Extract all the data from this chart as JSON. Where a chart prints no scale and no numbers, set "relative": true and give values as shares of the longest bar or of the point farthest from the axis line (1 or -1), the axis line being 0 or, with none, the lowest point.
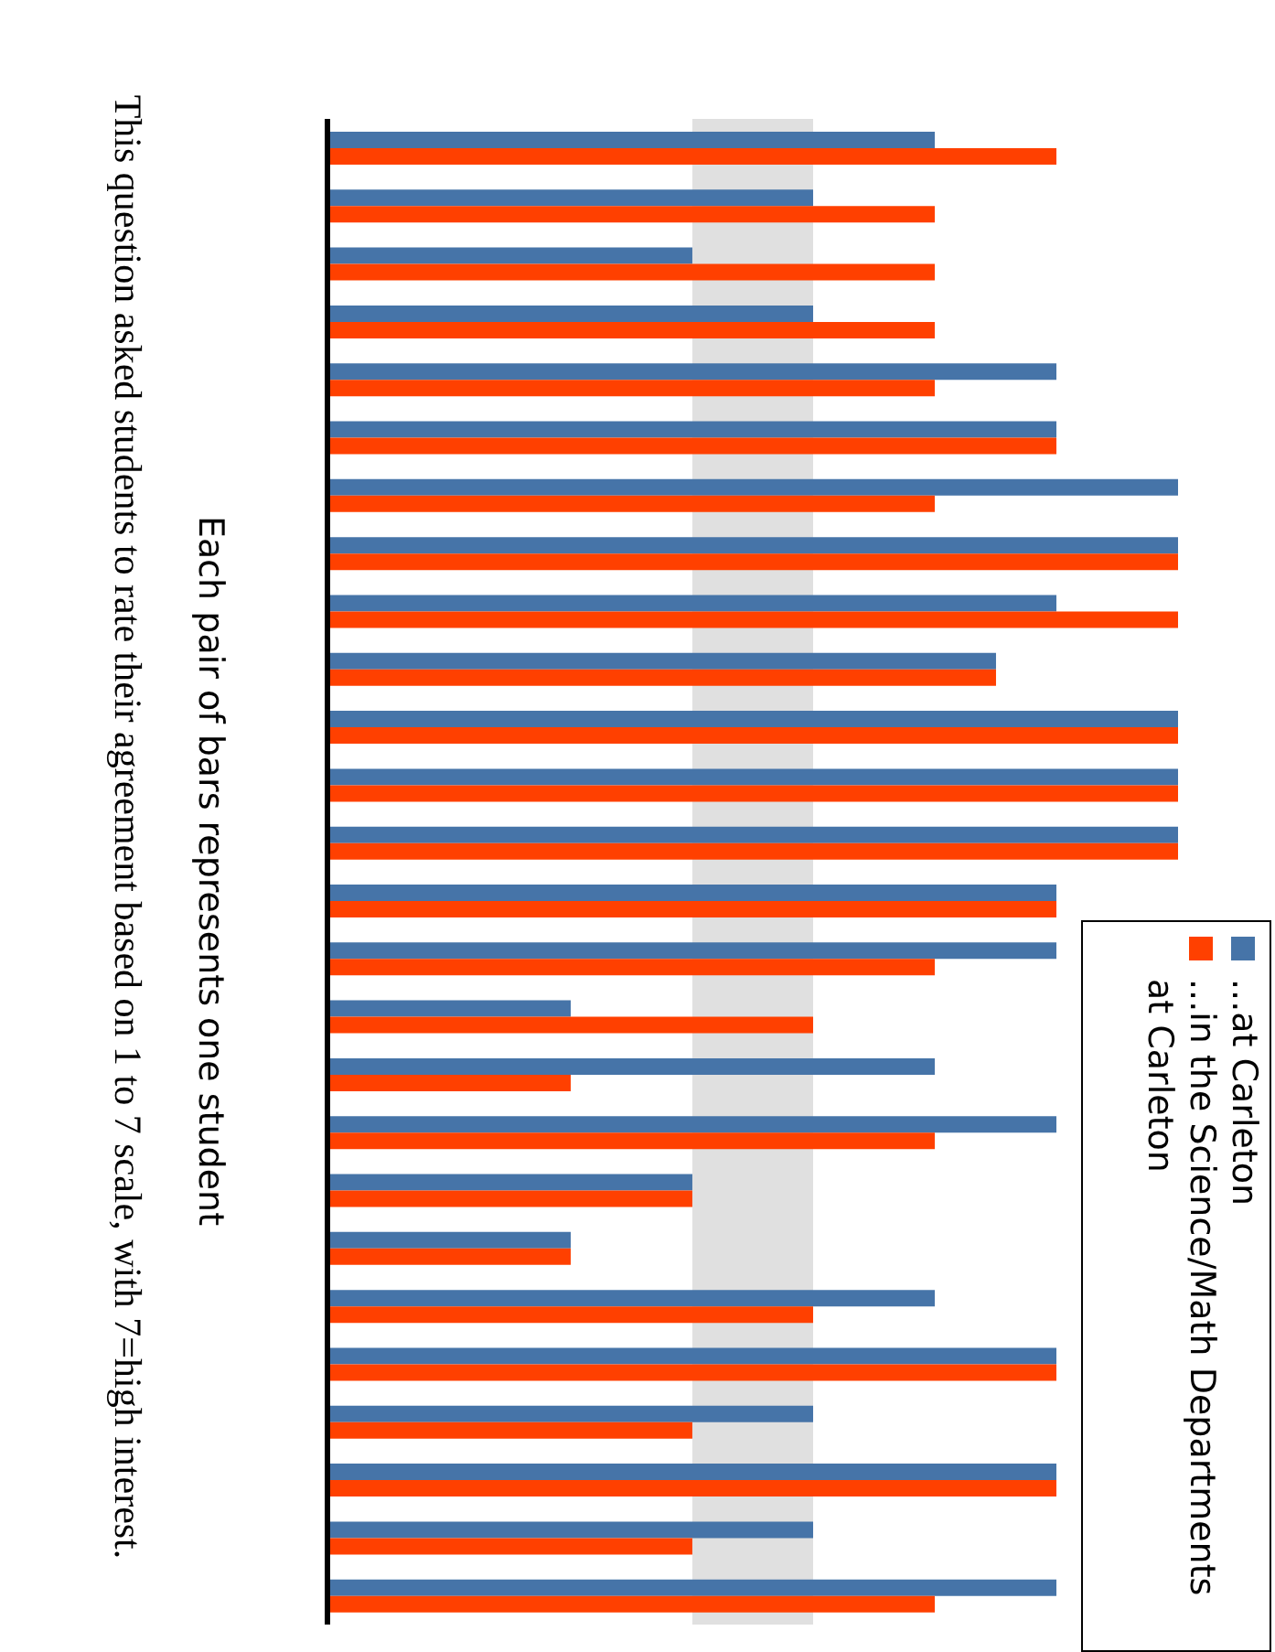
{
  "chart_data": {
    "type": "bar",
    "relative": true,
    "orientation": "horizontal",
    "ylabel": "Each pair of bars represents one student",
    "annotations": [
      "This question asked students to rate their agreement based on 1 to 7 scale, with 7=high interest."
    ],
    "categories": [
      null,
      null,
      null,
      null,
      null,
      null,
      null,
      null,
      null,
      null,
      null,
      null,
      null,
      null,
      null,
      null,
      null,
      null,
      null,
      null,
      null,
      null,
      null,
      null,
      null,
      null
    ],
    "series": [
      {
        "name": "...at Carleton",
        "color": "#4674a8",
        "values": [
          0.714,
          0.571,
          0.429,
          0.571,
          0.857,
          0.857,
          1,
          1,
          0.857,
          0.786,
          1,
          1,
          1,
          0.857,
          0.857,
          0.286,
          0.714,
          0.857,
          0.429,
          0.286,
          0.714,
          0.857,
          0.571,
          0.857,
          0.571,
          0.857
        ]
      },
      {
        "name": "...in the Science/Math Departments at Carleton",
        "color": "#ff4000",
        "values": [
          0.857,
          0.714,
          0.714,
          0.714,
          0.714,
          0.857,
          0.714,
          1,
          1,
          0.786,
          1,
          1,
          1,
          0.857,
          0.714,
          0.571,
          0.286,
          0.714,
          0.429,
          0.286,
          0.571,
          0.857,
          0.429,
          0.857,
          0.429,
          0.714
        ]
      }
    ],
    "bands": [
      {
        "axis": "x",
        "from": 0.429,
        "to": 0.571,
        "color": "#e0e0e0"
      }
    ],
    "legend": "bottom right"
  }
}
